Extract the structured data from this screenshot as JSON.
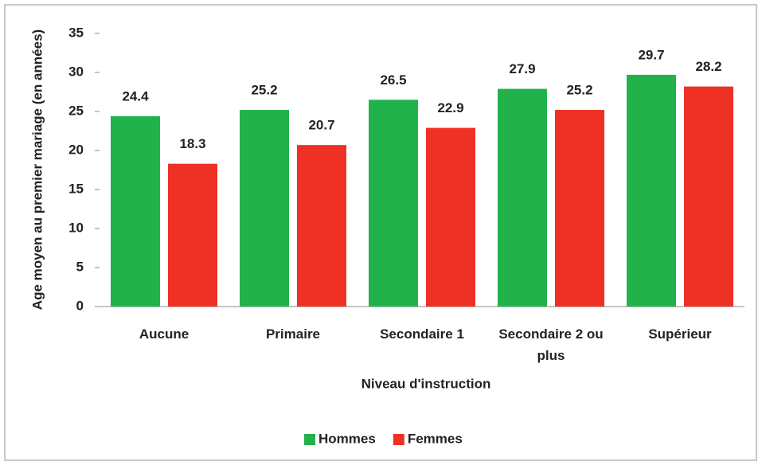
{
  "chart_data": {
    "type": "bar",
    "y_label": "Age moyen au premier mariage (en années)",
    "x_label": "Niveau d'instruction",
    "categories": [
      "Aucune",
      "Primaire",
      "Secondaire 1",
      "Secondaire 2 ou plus",
      "Supérieur"
    ],
    "series": [
      {
        "name": "Hommes",
        "color": "#22b24c",
        "values": [
          24.4,
          25.2,
          26.5,
          27.9,
          29.7
        ]
      },
      {
        "name": "Femmes",
        "color": "#ee3124",
        "values": [
          18.3,
          20.7,
          22.9,
          25.2,
          28.2
        ]
      }
    ],
    "ylim": [
      0,
      35
    ],
    "yticks": [
      0,
      5,
      10,
      15,
      20,
      25,
      30,
      35
    ],
    "grid": false,
    "legend": "bottom"
  }
}
